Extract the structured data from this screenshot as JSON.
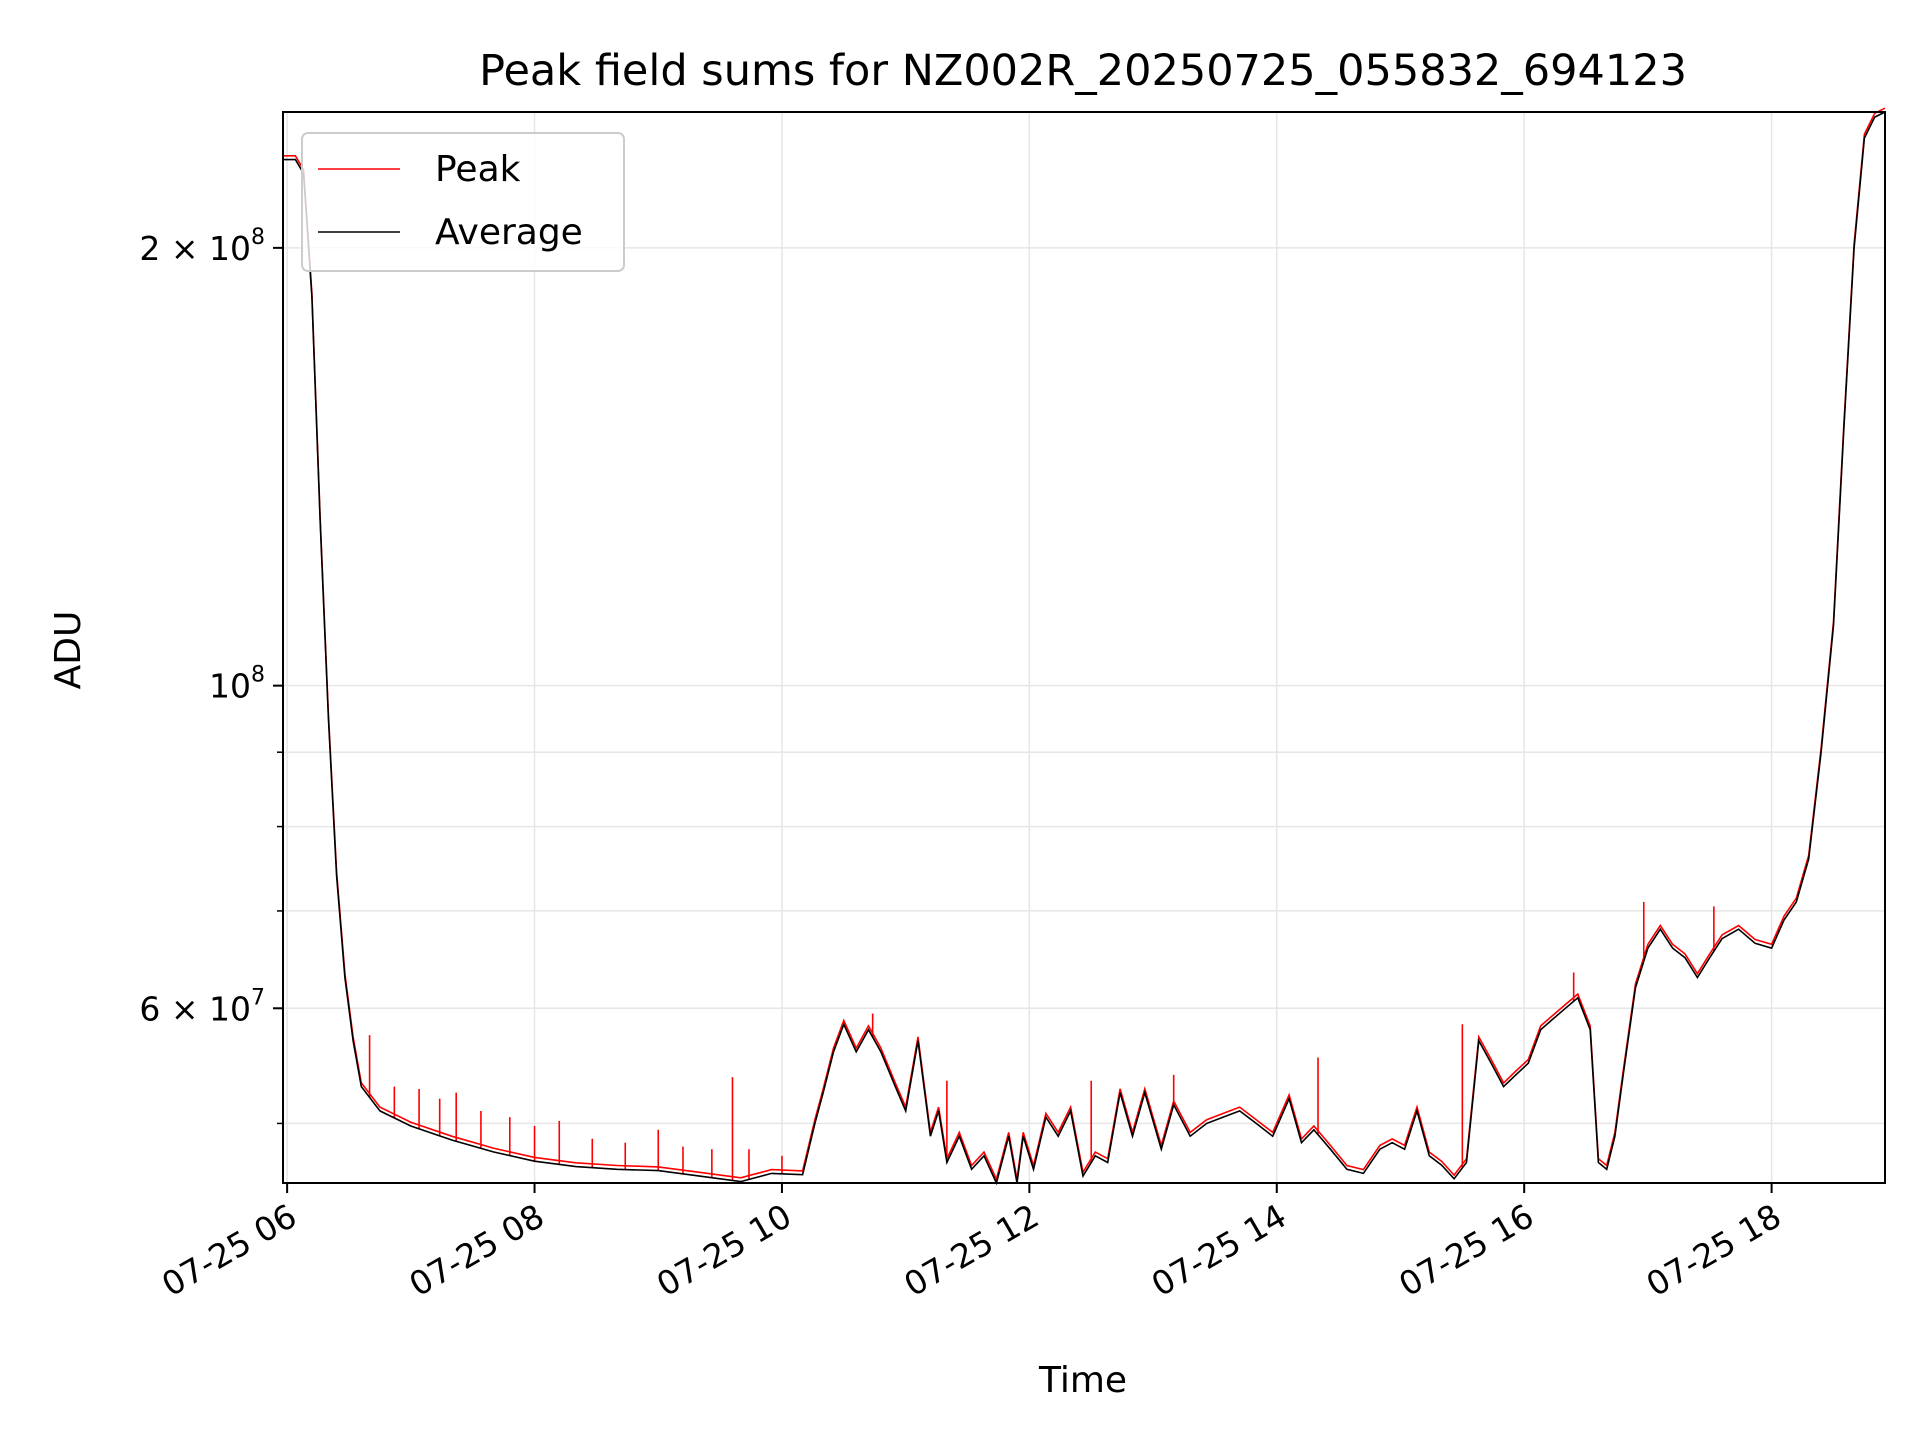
{
  "chart_data": {
    "type": "line",
    "title": "Peak field sums for NZ002R_20250725_055832_694123",
    "xlabel": "Time",
    "ylabel": "ADU",
    "yscale": "log",
    "grid": true,
    "legend_placement": "top-left",
    "xlim": [
      "2025-07-25 05:58",
      "2025-07-25 18:55"
    ],
    "ylim": [
      45500000,
      248000000
    ],
    "x_ticks": [
      {
        "value": "2025-07-25 06:00",
        "label": "07-25 06"
      },
      {
        "value": "2025-07-25 08:00",
        "label": "07-25 08"
      },
      {
        "value": "2025-07-25 10:00",
        "label": "07-25 10"
      },
      {
        "value": "2025-07-25 12:00",
        "label": "07-25 12"
      },
      {
        "value": "2025-07-25 14:00",
        "label": "07-25 14"
      },
      {
        "value": "2025-07-25 16:00",
        "label": "07-25 16"
      },
      {
        "value": "2025-07-25 18:00",
        "label": "07-25 18"
      }
    ],
    "y_ticks": [
      {
        "value": 60000000,
        "mantissa": "6",
        "exp": "7"
      },
      {
        "value": 100000000,
        "mantissa": "",
        "exp": "8"
      },
      {
        "value": 200000000,
        "mantissa": "2",
        "exp": "8"
      }
    ],
    "y_minor_ticks": [
      50000000,
      70000000,
      80000000,
      90000000
    ],
    "series": [
      {
        "name": "Average",
        "color": "#000000",
        "x": [
          "2025-07-25 05:58",
          "2025-07-25 06:04",
          "2025-07-25 06:08",
          "2025-07-25 06:12",
          "2025-07-25 06:16",
          "2025-07-25 06:20",
          "2025-07-25 06:24",
          "2025-07-25 06:28",
          "2025-07-25 06:32",
          "2025-07-25 06:36",
          "2025-07-25 06:45",
          "2025-07-25 07:00",
          "2025-07-25 07:20",
          "2025-07-25 07:40",
          "2025-07-25 08:00",
          "2025-07-25 08:20",
          "2025-07-25 08:40",
          "2025-07-25 09:00",
          "2025-07-25 09:20",
          "2025-07-25 09:40",
          "2025-07-25 09:55",
          "2025-07-25 10:10",
          "2025-07-25 10:16",
          "2025-07-25 10:20",
          "2025-07-25 10:25",
          "2025-07-25 10:30",
          "2025-07-25 10:36",
          "2025-07-25 10:42",
          "2025-07-25 10:48",
          "2025-07-25 10:55",
          "2025-07-25 11:00",
          "2025-07-25 11:06",
          "2025-07-25 11:12",
          "2025-07-25 11:16",
          "2025-07-25 11:20",
          "2025-07-25 11:26",
          "2025-07-25 11:32",
          "2025-07-25 11:38",
          "2025-07-25 11:44",
          "2025-07-25 11:50",
          "2025-07-25 11:54",
          "2025-07-25 11:57",
          "2025-07-25 12:02",
          "2025-07-25 12:08",
          "2025-07-25 12:14",
          "2025-07-25 12:20",
          "2025-07-25 12:26",
          "2025-07-25 12:32",
          "2025-07-25 12:38",
          "2025-07-25 12:44",
          "2025-07-25 12:50",
          "2025-07-25 12:56",
          "2025-07-25 13:04",
          "2025-07-25 13:10",
          "2025-07-25 13:18",
          "2025-07-25 13:26",
          "2025-07-25 13:34",
          "2025-07-25 13:42",
          "2025-07-25 13:50",
          "2025-07-25 13:58",
          "2025-07-25 14:06",
          "2025-07-25 14:12",
          "2025-07-25 14:18",
          "2025-07-25 14:26",
          "2025-07-25 14:34",
          "2025-07-25 14:42",
          "2025-07-25 14:50",
          "2025-07-25 14:56",
          "2025-07-25 15:02",
          "2025-07-25 15:08",
          "2025-07-25 15:14",
          "2025-07-25 15:20",
          "2025-07-25 15:26",
          "2025-07-25 15:32",
          "2025-07-25 15:38",
          "2025-07-25 15:44",
          "2025-07-25 15:50",
          "2025-07-25 15:56",
          "2025-07-25 16:02",
          "2025-07-25 16:08",
          "2025-07-25 16:14",
          "2025-07-25 16:20",
          "2025-07-25 16:26",
          "2025-07-25 16:32",
          "2025-07-25 16:36",
          "2025-07-25 16:40",
          "2025-07-25 16:44",
          "2025-07-25 16:48",
          "2025-07-25 16:54",
          "2025-07-25 17:00",
          "2025-07-25 17:06",
          "2025-07-25 17:12",
          "2025-07-25 17:18",
          "2025-07-25 17:24",
          "2025-07-25 17:30",
          "2025-07-25 17:36",
          "2025-07-25 17:44",
          "2025-07-25 17:52",
          "2025-07-25 18:00",
          "2025-07-25 18:06",
          "2025-07-25 18:12",
          "2025-07-25 18:18",
          "2025-07-25 18:24",
          "2025-07-25 18:30",
          "2025-07-25 18:35",
          "2025-07-25 18:40",
          "2025-07-25 18:45",
          "2025-07-25 18:50",
          "2025-07-25 18:55"
        ],
        "y": [
          230000000,
          230000000,
          225000000,
          185000000,
          130000000,
          95000000,
          74000000,
          63000000,
          57000000,
          53000000,
          51000000,
          49800000,
          48700000,
          47800000,
          47100000,
          46700000,
          46500000,
          46400000,
          46000000,
          45600000,
          46200000,
          46100000,
          50000000,
          52500000,
          56000000,
          58500000,
          56000000,
          58000000,
          56000000,
          53000000,
          51000000,
          57000000,
          49000000,
          51000000,
          47000000,
          49000000,
          46500000,
          47500000,
          45500000,
          49000000,
          45500000,
          49000000,
          46500000,
          50500000,
          49000000,
          51000000,
          46000000,
          47500000,
          47000000,
          52500000,
          49000000,
          52500000,
          48000000,
          51500000,
          49000000,
          50000000,
          50500000,
          51000000,
          50000000,
          49000000,
          52000000,
          48500000,
          49500000,
          48000000,
          46500000,
          46200000,
          48000000,
          48500000,
          48000000,
          51000000,
          47500000,
          46800000,
          45800000,
          47000000,
          57000000,
          55000000,
          53000000,
          54000000,
          55000000,
          58000000,
          59000000,
          60000000,
          61000000,
          58000000,
          47000000,
          46500000,
          49000000,
          54000000,
          62000000,
          66000000,
          68000000,
          66000000,
          65000000,
          63000000,
          65000000,
          67000000,
          68000000,
          66500000,
          66000000,
          69000000,
          71000000,
          76000000,
          90000000,
          110000000,
          150000000,
          200000000,
          238000000,
          246000000,
          248000000
        ]
      },
      {
        "name": "Peak",
        "color": "#ff0000",
        "x": [
          "2025-07-25 06:40",
          "2025-07-25 06:52",
          "2025-07-25 07:04",
          "2025-07-25 07:14",
          "2025-07-25 07:22",
          "2025-07-25 07:34",
          "2025-07-25 07:48",
          "2025-07-25 08:00",
          "2025-07-25 08:12",
          "2025-07-25 08:28",
          "2025-07-25 08:44",
          "2025-07-25 09:00",
          "2025-07-25 09:12",
          "2025-07-25 09:26",
          "2025-07-25 09:36",
          "2025-07-25 09:44",
          "2025-07-25 10:00",
          "2025-07-25 10:44",
          "2025-07-25 11:20",
          "2025-07-25 12:30",
          "2025-07-25 13:10",
          "2025-07-25 14:20",
          "2025-07-25 15:30",
          "2025-07-25 16:24",
          "2025-07-25 16:58",
          "2025-07-25 17:32"
        ],
        "y": [
          57500000,
          53000000,
          52800000,
          52000000,
          52500000,
          51000000,
          50500000,
          49800000,
          50200000,
          48800000,
          48500000,
          49500000,
          48200000,
          48000000,
          53800000,
          48000000,
          47500000,
          59500000,
          53500000,
          53500000,
          54000000,
          55500000,
          58500000,
          63500000,
          71000000,
          70500000
        ]
      }
    ]
  }
}
